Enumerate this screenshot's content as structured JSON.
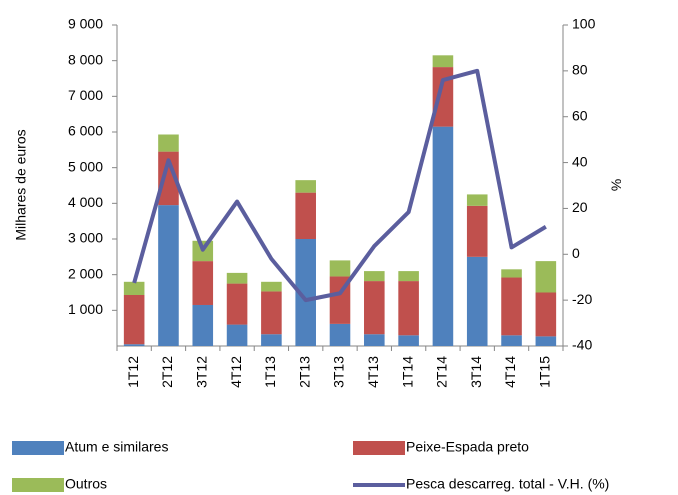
{
  "chart_data": {
    "type": "bar-line",
    "y_label": "Milhares de euros",
    "y2_label": "%",
    "categories": [
      "1T12",
      "2T12",
      "3T12",
      "4T12",
      "1T13",
      "2T13",
      "3T13",
      "4T13",
      "1T14",
      "2T14",
      "3T14",
      "4T14",
      "1T15"
    ],
    "series": [
      {
        "name": "Atum e similares",
        "color": "#4f81bd",
        "values": [
          50,
          3950,
          1150,
          600,
          330,
          3000,
          620,
          330,
          300,
          6150,
          2500,
          300,
          270
        ]
      },
      {
        "name": "Peixe-Espada preto",
        "color": "#c0504d",
        "values": [
          1380,
          1500,
          1230,
          1150,
          1200,
          1300,
          1330,
          1490,
          1520,
          1670,
          1430,
          1620,
          1230
        ]
      },
      {
        "name": "Outros",
        "color": "#9bbb59",
        "values": [
          370,
          480,
          570,
          300,
          270,
          350,
          450,
          280,
          280,
          330,
          320,
          230,
          880
        ]
      },
      {
        "name": "Pesca descarreg. total - V.H. (%)",
        "color": "#5b5e9e",
        "axis": "y2",
        "values": [
          -12.5,
          41,
          2,
          23,
          -2,
          -20,
          -17,
          3.6,
          18.4,
          76,
          80,
          3,
          12
        ]
      }
    ],
    "ylim": [
      0,
      9000
    ],
    "yticks": [
      {
        "value": 1000,
        "label": "1 000"
      },
      {
        "value": 2000,
        "label": "2 000"
      },
      {
        "value": 3000,
        "label": "3 000"
      },
      {
        "value": 4000,
        "label": "4 000"
      },
      {
        "value": 5000,
        "label": "5 000"
      },
      {
        "value": 6000,
        "label": "6 000"
      },
      {
        "value": 7000,
        "label": "7 000"
      },
      {
        "value": 8000,
        "label": "8 000"
      },
      {
        "value": 9000,
        "label": "9 000"
      }
    ],
    "y2lim": [
      -40,
      100
    ],
    "y2ticks": [
      -40,
      -20,
      0,
      20,
      40,
      60,
      80,
      100
    ]
  }
}
